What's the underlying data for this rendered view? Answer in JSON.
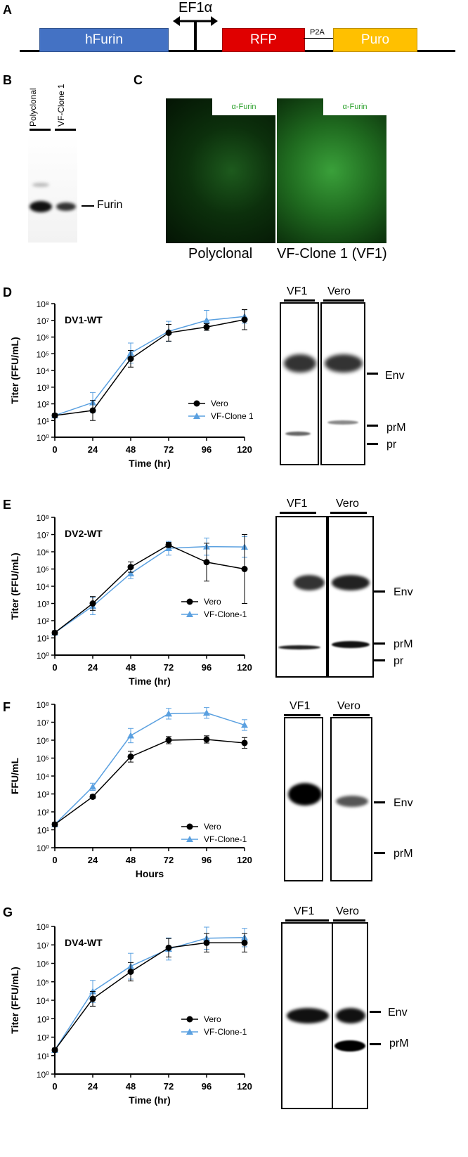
{
  "panels": {
    "A": {
      "letter": "A",
      "promoter": "EF1α",
      "segments": [
        "hFurin",
        "RFP",
        "P2A",
        "Puro"
      ],
      "colors": {
        "hFurin": "#4472c4",
        "RFP": "#e00000",
        "Puro": "#ffc000"
      }
    },
    "B": {
      "letter": "B",
      "lanes": [
        "Polyclonal",
        "VF-Clone 1"
      ],
      "band_label": "Furin"
    },
    "C": {
      "letter": "C",
      "images": [
        {
          "stain": "α-Furin",
          "caption": "Polyclonal"
        },
        {
          "stain": "α-Furin",
          "caption": "VF-Clone 1 (VF1)"
        }
      ]
    },
    "D": {
      "letter": "D",
      "lanes": [
        "VF1",
        "Vero"
      ],
      "band_labels": [
        "Env",
        "prM",
        "pr"
      ]
    },
    "E": {
      "letter": "E",
      "lanes": [
        "VF1",
        "Vero"
      ],
      "band_labels": [
        "Env",
        "prM",
        "pr"
      ]
    },
    "F": {
      "letter": "F",
      "lanes": [
        "VF1",
        "Vero"
      ],
      "band_labels": [
        "Env",
        "prM"
      ]
    },
    "G": {
      "letter": "G",
      "lanes": [
        "VF1",
        "Vero"
      ],
      "band_labels": [
        "Env",
        "prM"
      ]
    }
  },
  "chart_data": [
    {
      "type": "line",
      "panel": "D",
      "title": "DV1-WT",
      "xlabel": "Time (hr)",
      "ylabel": "Titer (FFU/mL)",
      "x": [
        0,
        24,
        48,
        72,
        96,
        120
      ],
      "xlim": [
        0,
        120
      ],
      "ylim_log10": [
        0,
        8
      ],
      "yscale": "log",
      "ytick_labels": [
        "10⁰",
        "10¹",
        "10²",
        "10³",
        "10⁴",
        "10⁵",
        "10⁶",
        "10⁷",
        "10⁸"
      ],
      "series": [
        {
          "name": "Vero",
          "color": "#000000",
          "marker": "circle",
          "values": [
            20,
            40,
            50000,
            1800000,
            4000000,
            11000000
          ],
          "errors_log10": [
            0.1,
            0.6,
            0.5,
            0.5,
            0.2,
            0.6
          ]
        },
        {
          "name": "VF-Clone 1",
          "color": "#5aa0e0",
          "marker": "triangle",
          "values": [
            20,
            120,
            110000,
            2200000,
            10000000,
            17000000
          ],
          "errors_log10": [
            0.1,
            0.6,
            0.6,
            0.6,
            0.6,
            0.4
          ]
        }
      ]
    },
    {
      "type": "line",
      "panel": "E",
      "title": "DV2-WT",
      "xlabel": "Time (hr)",
      "ylabel": "Titer (FFU/mL)",
      "x": [
        0,
        24,
        48,
        72,
        96,
        120
      ],
      "xlim": [
        0,
        120
      ],
      "ylim_log10": [
        0,
        8
      ],
      "yscale": "log",
      "ytick_labels": [
        "10⁰",
        "10¹",
        "10²",
        "10³",
        "10⁴",
        "10⁵",
        "10⁶",
        "10⁷",
        "10⁸"
      ],
      "series": [
        {
          "name": "Vero",
          "color": "#000000",
          "marker": "circle",
          "values": [
            20,
            1000,
            130000,
            2500000,
            250000,
            100000
          ],
          "errors_log10": [
            0.1,
            0.4,
            0.3,
            0.15,
            1.1,
            2.0
          ]
        },
        {
          "name": "VF-Clone-1",
          "color": "#5aa0e0",
          "marker": "triangle",
          "values": [
            20,
            700,
            55000,
            1600000,
            2000000,
            1900000
          ],
          "errors_log10": [
            0.1,
            0.5,
            0.3,
            0.4,
            0.5,
            0.6
          ]
        }
      ]
    },
    {
      "type": "line",
      "panel": "F",
      "title": "",
      "xlabel": "Hours",
      "ylabel": "FFU/mL",
      "x": [
        0,
        24,
        48,
        72,
        96,
        120
      ],
      "xlim": [
        0,
        120
      ],
      "ylim_log10": [
        0,
        8
      ],
      "yscale": "log",
      "ytick_labels": [
        "10⁰",
        "10¹",
        "10²",
        "10³",
        "10⁴",
        "10⁵",
        "10⁶",
        "10⁷",
        "10⁸"
      ],
      "series": [
        {
          "name": "Vero",
          "color": "#000000",
          "marker": "circle",
          "values": [
            20,
            700,
            120000,
            1000000,
            1100000,
            700000
          ],
          "errors_log10": [
            0.1,
            0.1,
            0.3,
            0.2,
            0.2,
            0.3
          ]
        },
        {
          "name": "VF-Clone-1",
          "color": "#5aa0e0",
          "marker": "triangle",
          "values": [
            20,
            2500,
            1800000,
            30000000,
            33000000,
            7000000
          ],
          "errors_log10": [
            0.1,
            0.2,
            0.4,
            0.3,
            0.3,
            0.3
          ]
        }
      ]
    },
    {
      "type": "line",
      "panel": "G",
      "title": "DV4-WT",
      "xlabel": "Time (hr)",
      "ylabel": "Titer (FFU/mL)",
      "x": [
        0,
        24,
        48,
        72,
        96,
        120
      ],
      "xlim": [
        0,
        120
      ],
      "ylim_log10": [
        0,
        8
      ],
      "yscale": "log",
      "ytick_labels": [
        "10⁰",
        "10¹",
        "10²",
        "10³",
        "10⁴",
        "10⁵",
        "10⁶",
        "10⁷",
        "10⁸"
      ],
      "series": [
        {
          "name": "Vero",
          "color": "#000000",
          "marker": "circle",
          "values": [
            20,
            12000,
            350000,
            7000000,
            13000000,
            13000000
          ],
          "errors_log10": [
            0.1,
            0.4,
            0.5,
            0.5,
            0.5,
            0.5
          ]
        },
        {
          "name": "VF-Clone-1",
          "color": "#5aa0e0",
          "marker": "triangle",
          "values": [
            20,
            30000,
            700000,
            6000000,
            23000000,
            25000000
          ],
          "errors_log10": [
            0.1,
            0.6,
            0.7,
            0.6,
            0.6,
            0.5
          ]
        }
      ]
    }
  ]
}
